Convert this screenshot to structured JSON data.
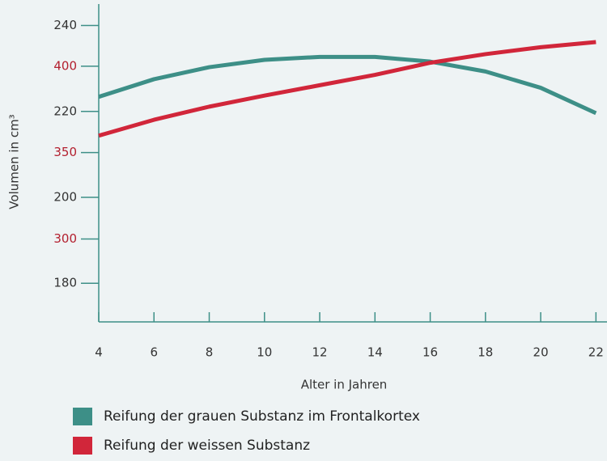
{
  "chart_data": {
    "type": "line",
    "x_label": "Alter in Jahren",
    "y_label": "Volumen in cm³",
    "x": [
      4,
      6,
      8,
      10,
      12,
      14,
      16,
      18,
      20,
      22
    ],
    "xlim": [
      4,
      22.4
    ],
    "xticks": [
      4,
      6,
      8,
      10,
      12,
      14,
      16,
      18,
      20,
      22
    ],
    "ylim": [
      171,
      245
    ],
    "yticks": [
      180,
      200,
      220,
      240
    ],
    "y2lim": [
      252,
      436
    ],
    "y2ticks": [
      300,
      350,
      400
    ],
    "axis_color": "#3d8f87",
    "series": [
      {
        "name": "Reifung der grauen Substanz im Frontalkortex",
        "color": "#3d8f87",
        "values": [
          223.4,
          227.5,
          230.3,
          232,
          232.7,
          232.7,
          231.6,
          229.3,
          225.5,
          219.6
        ]
      },
      {
        "name": "Reifung der weissen Substanz",
        "color": "#d1263a",
        "axis": "y2",
        "values": [
          359.8,
          369,
          376.6,
          383,
          389,
          395,
          402,
          407,
          411,
          414
        ]
      }
    ]
  }
}
